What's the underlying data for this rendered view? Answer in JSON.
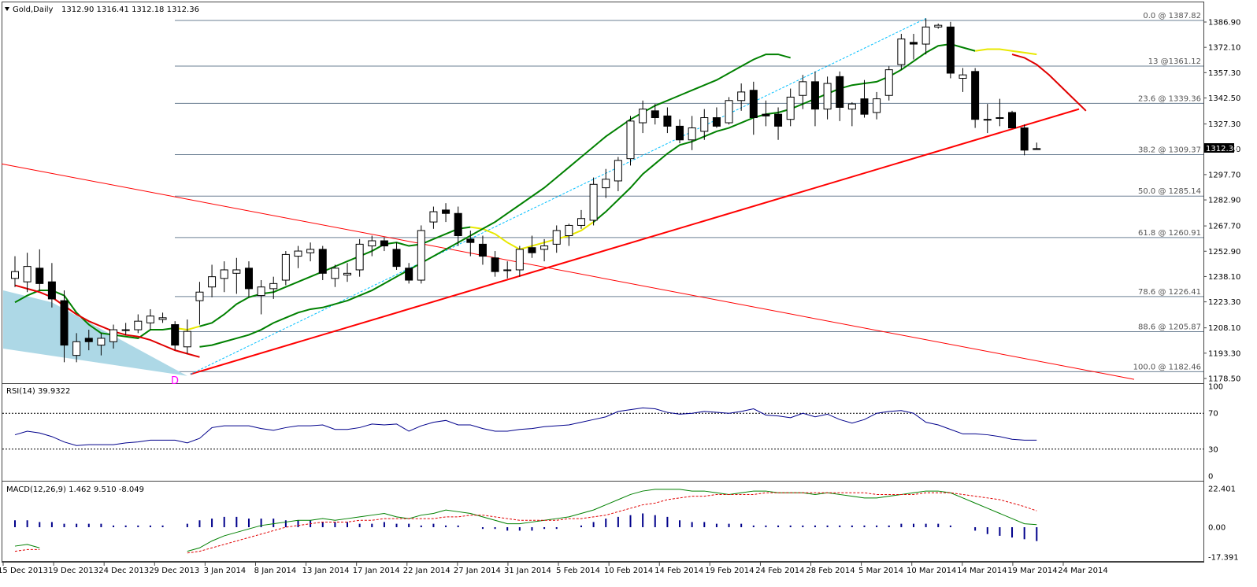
{
  "header": {
    "symbol_label": "Gold,Daily",
    "ohlc": "1312.90 1316.41 1312.18 1312.36"
  },
  "colors": {
    "fib_line": "#6b7f93",
    "trend_line": "#ff0000",
    "ma_fast": "#008000",
    "ma_slow_red": "#e00000",
    "ma_yellow": "#e8e800",
    "channel": "#00bfff",
    "rsi_line": "#00008b",
    "macd_hist": "#00008b",
    "macd_signal": "#e00000",
    "shade": "#add8e6",
    "marker": "#ff00ff"
  },
  "marker_text": "D",
  "chart_data": {
    "type": "candlestick",
    "price_axis": {
      "ticks": [
        "1386.90",
        "1372.10",
        "1357.30",
        "1342.50",
        "1327.30",
        "1312.50",
        "1297.70",
        "1282.90",
        "1267.70",
        "1252.90",
        "1238.10",
        "1223.30",
        "1208.10",
        "1193.30",
        "1178.50"
      ],
      "current_price": "1312.36"
    },
    "date_ticks": [
      "15 Dec 2013",
      "19 Dec 2013",
      "24 Dec 2013",
      "29 Dec 2013",
      "3 Jan 2014",
      "8 Jan 2014",
      "13 Jan 2014",
      "17 Jan 2014",
      "22 Jan 2014",
      "27 Jan 2014",
      "31 Jan 2014",
      "5 Feb 2014",
      "10 Feb 2014",
      "14 Feb 2014",
      "19 Feb 2014",
      "24 Feb 2014",
      "28 Feb 2014",
      "5 Mar 2014",
      "10 Mar 2014",
      "14 Mar 2014",
      "19 Mar 2014",
      "24 Mar 2014"
    ],
    "fibonacci": [
      {
        "label": "0.0 @ 1387.82",
        "price": 1387.82
      },
      {
        "label": "13 @1361.12",
        "price": 1361.12
      },
      {
        "label": "23.6 @ 1339.36",
        "price": 1339.36
      },
      {
        "label": "38.2 @ 1309.37",
        "price": 1309.37
      },
      {
        "label": "50.0 @ 1285.14",
        "price": 1285.14
      },
      {
        "label": "61.8 @ 1260.91",
        "price": 1260.91
      },
      {
        "label": "78.6 @ 1226.41",
        "price": 1226.41
      },
      {
        "label": "88.6 @ 1205.87",
        "price": 1205.87
      },
      {
        "label": "100.0 @ 1182.46",
        "price": 1182.46
      }
    ],
    "candles": [
      [
        1237,
        1250,
        1232,
        1241
      ],
      [
        1235,
        1252,
        1229,
        1244
      ],
      [
        1243,
        1254,
        1230,
        1234
      ],
      [
        1235,
        1246,
        1220,
        1225
      ],
      [
        1224,
        1230,
        1188,
        1198
      ],
      [
        1192,
        1205,
        1188,
        1200
      ],
      [
        1202,
        1207,
        1195,
        1200
      ],
      [
        1198,
        1205,
        1192,
        1202
      ],
      [
        1200,
        1210,
        1196,
        1207
      ],
      [
        1207,
        1211,
        1204,
        1207
      ],
      [
        1207,
        1216,
        1205,
        1212
      ],
      [
        1211,
        1219,
        1207,
        1215
      ],
      [
        1213,
        1217,
        1211,
        1214
      ],
      [
        1210,
        1212,
        1195,
        1198
      ],
      [
        1197,
        1213,
        1193,
        1206
      ],
      [
        1224,
        1235,
        1210,
        1229
      ],
      [
        1232,
        1245,
        1226,
        1238
      ],
      [
        1237,
        1247,
        1229,
        1242
      ],
      [
        1240,
        1249,
        1228,
        1242
      ],
      [
        1243,
        1247,
        1226,
        1231
      ],
      [
        1227,
        1236,
        1216,
        1232
      ],
      [
        1231,
        1238,
        1225,
        1234
      ],
      [
        1236,
        1253,
        1233,
        1251
      ],
      [
        1250,
        1256,
        1243,
        1253
      ],
      [
        1252,
        1258,
        1247,
        1254
      ],
      [
        1254,
        1256,
        1236,
        1240
      ],
      [
        1237,
        1245,
        1232,
        1243
      ],
      [
        1239,
        1246,
        1235,
        1240
      ],
      [
        1242,
        1260,
        1238,
        1257
      ],
      [
        1256,
        1262,
        1250,
        1259
      ],
      [
        1259,
        1261,
        1253,
        1256
      ],
      [
        1254,
        1258,
        1242,
        1244
      ],
      [
        1243,
        1246,
        1234,
        1236
      ],
      [
        1236,
        1268,
        1234,
        1265
      ],
      [
        1270,
        1279,
        1266,
        1276
      ],
      [
        1277,
        1281,
        1270,
        1275
      ],
      [
        1275,
        1279,
        1256,
        1262
      ],
      [
        1260,
        1265,
        1250,
        1258
      ],
      [
        1257,
        1262,
        1245,
        1250
      ],
      [
        1249,
        1253,
        1238,
        1241
      ],
      [
        1242,
        1247,
        1237,
        1242
      ],
      [
        1242,
        1256,
        1238,
        1254
      ],
      [
        1255,
        1262,
        1249,
        1252
      ],
      [
        1254,
        1260,
        1247,
        1256
      ],
      [
        1257,
        1268,
        1252,
        1265
      ],
      [
        1262,
        1269,
        1256,
        1268
      ],
      [
        1268,
        1277,
        1266,
        1272
      ],
      [
        1271,
        1296,
        1268,
        1292
      ],
      [
        1290,
        1301,
        1284,
        1295
      ],
      [
        1294,
        1308,
        1288,
        1306
      ],
      [
        1307,
        1332,
        1303,
        1329
      ],
      [
        1328,
        1341,
        1322,
        1336
      ],
      [
        1335,
        1339,
        1327,
        1331
      ],
      [
        1332,
        1337,
        1322,
        1326
      ],
      [
        1326,
        1330,
        1316,
        1318
      ],
      [
        1318,
        1332,
        1312,
        1325
      ],
      [
        1323,
        1336,
        1318,
        1331
      ],
      [
        1331,
        1337,
        1325,
        1326
      ],
      [
        1328,
        1343,
        1327,
        1341
      ],
      [
        1341,
        1351,
        1335,
        1346
      ],
      [
        1347,
        1352,
        1321,
        1331
      ],
      [
        1333,
        1341,
        1326,
        1332
      ],
      [
        1333,
        1337,
        1318,
        1326
      ],
      [
        1330,
        1348,
        1326,
        1343
      ],
      [
        1344,
        1356,
        1336,
        1352
      ],
      [
        1352,
        1358,
        1326,
        1336
      ],
      [
        1336,
        1355,
        1330,
        1351
      ],
      [
        1355,
        1358,
        1329,
        1337
      ],
      [
        1336,
        1340,
        1326,
        1339
      ],
      [
        1342,
        1353,
        1331,
        1333
      ],
      [
        1334,
        1346,
        1330,
        1342
      ],
      [
        1344,
        1361,
        1341,
        1359
      ],
      [
        1362,
        1380,
        1359,
        1377
      ],
      [
        1375,
        1380,
        1365,
        1374
      ],
      [
        1374,
        1389,
        1368,
        1384
      ],
      [
        1384,
        1386,
        1383,
        1385
      ],
      [
        1384,
        1387,
        1354,
        1357
      ],
      [
        1354,
        1360,
        1346,
        1356
      ],
      [
        1358,
        1360,
        1325,
        1330
      ],
      [
        1330,
        1339,
        1322,
        1330
      ],
      [
        1331,
        1342,
        1326,
        1331
      ],
      [
        1334,
        1335,
        1326,
        1325
      ],
      [
        1325,
        1327,
        1309,
        1312
      ],
      [
        1312.9,
        1316.41,
        1312.18,
        1312.36
      ]
    ],
    "moving_averages": {
      "ma_fast": [
        1223,
        1227,
        1230,
        1230,
        1227,
        1217,
        1210,
        1205,
        1204,
        1203,
        1202,
        1207,
        1207,
        1208,
        1207,
        1209,
        1211,
        1216,
        1222,
        1226,
        1228,
        1229,
        1232,
        1235,
        1238,
        1241,
        1244,
        1247,
        1250,
        1253,
        1257,
        1258,
        1256,
        1257,
        1260,
        1263,
        1266,
        1267,
        1266,
        1263,
        1258,
        1254,
        1256,
        1258,
        1260,
        1262,
        1265,
        1270,
        1276,
        1283,
        1290,
        1298,
        1304,
        1310,
        1315,
        1317,
        1320,
        1323,
        1325,
        1328,
        1331,
        1333,
        1334,
        1336,
        1339,
        1342,
        1345,
        1348,
        1350,
        1351,
        1352,
        1355,
        1359,
        1364,
        1369,
        1373,
        1374,
        1372,
        1370,
        1371,
        1371,
        1370,
        1369,
        1368
      ],
      "ma_red_start": [
        1233,
        1231,
        1229,
        1226,
        1221,
        1216,
        1212,
        1209,
        1206,
        1204,
        1203,
        1201,
        1198,
        1195,
        1193,
        1191
      ],
      "ma_green_mid": [
        1197,
        1198,
        1200,
        1202,
        1204,
        1207,
        1211,
        1214,
        1217,
        1219,
        1220,
        1222,
        1224,
        1227,
        1230,
        1234,
        1238,
        1242,
        1246,
        1250,
        1254,
        1258,
        1262,
        1266,
        1270,
        1275,
        1280,
        1285,
        1290,
        1296,
        1302,
        1308,
        1314,
        1320,
        1325,
        1330,
        1334,
        1338,
        1341,
        1344,
        1347,
        1350,
        1353,
        1357,
        1361,
        1365,
        1368,
        1368,
        1366
      ],
      "ma_red_end": [
        1368,
        1366,
        1362,
        1356,
        1349,
        1342,
        1335
      ]
    },
    "rsi": {
      "label": "RSI(14) 39.9322",
      "levels": [
        "70",
        "30"
      ],
      "axis": [
        "100",
        "70",
        "30",
        "0"
      ],
      "values": [
        46,
        50,
        48,
        44,
        38,
        34,
        35,
        35,
        35,
        37,
        38,
        40,
        40,
        40,
        37,
        42,
        54,
        56,
        56,
        56,
        53,
        51,
        54,
        56,
        56,
        57,
        52,
        52,
        54,
        58,
        57,
        58,
        50,
        56,
        60,
        62,
        57,
        57,
        53,
        50,
        50,
        52,
        53,
        55,
        56,
        57,
        60,
        63,
        66,
        72,
        74,
        76,
        75,
        71,
        69,
        70,
        72,
        71,
        70,
        72,
        75,
        68,
        67,
        65,
        70,
        66,
        69,
        63,
        59,
        63,
        70,
        72,
        73,
        70,
        60,
        57,
        52,
        47,
        47,
        46,
        44,
        41,
        40,
        40
      ],
      "current": 39.9322
    },
    "macd": {
      "label": "MACD(12,26,9) 1.462 9.510 -8.049",
      "axis": [
        "22.401",
        "0.00",
        "-17.391"
      ],
      "main": [
        -11,
        -10,
        -12,
        null,
        null,
        null,
        null,
        null,
        null,
        null,
        null,
        null,
        null,
        null,
        -14,
        -12,
        -8,
        -5,
        -3,
        -1,
        1,
        2,
        3,
        4,
        4,
        5,
        4,
        5,
        6,
        7,
        8,
        6,
        5,
        7,
        8,
        10,
        9,
        8,
        6,
        4,
        2,
        2,
        3,
        4,
        5,
        6,
        8,
        10,
        13,
        16,
        19,
        21,
        22,
        22,
        22,
        21,
        21,
        20,
        19,
        20,
        21,
        21,
        20,
        20,
        20,
        19,
        20,
        19,
        18,
        17,
        17,
        18,
        19,
        20,
        21,
        21,
        20,
        17,
        14,
        11,
        8,
        5,
        2,
        1.462
      ],
      "signal": [
        -14,
        -13,
        -13,
        null,
        null,
        null,
        null,
        null,
        null,
        null,
        null,
        null,
        null,
        null,
        -15,
        -14,
        -12,
        -10,
        -8,
        -6,
        -4,
        -2,
        0,
        1,
        2,
        3,
        3,
        3,
        4,
        4,
        5,
        5,
        5,
        5,
        5,
        6,
        6,
        7,
        7,
        6,
        5,
        4,
        4,
        4,
        4,
        5,
        5,
        6,
        7,
        9,
        11,
        13,
        14,
        16,
        17,
        18,
        18,
        19,
        19,
        19,
        19,
        20,
        20,
        20,
        20,
        20,
        20,
        20,
        20,
        20,
        19,
        19,
        19,
        19,
        20,
        20,
        20,
        19,
        18,
        17,
        16,
        14,
        12,
        9.51
      ],
      "hist": [
        4,
        4,
        3,
        3,
        2,
        2,
        2,
        2,
        1,
        1,
        1,
        1,
        1,
        0,
        2,
        4,
        5,
        6,
        6,
        5,
        5,
        5,
        4,
        4,
        4,
        3,
        3,
        3,
        2,
        2,
        3,
        2,
        2,
        1,
        2,
        1,
        1,
        0,
        -1,
        -1,
        -2,
        -2,
        -2,
        -1,
        -1,
        0,
        1,
        3,
        5,
        6,
        7,
        8,
        7,
        6,
        4,
        3,
        3,
        2,
        2,
        2,
        1,
        1,
        1,
        1,
        1,
        1,
        1,
        1,
        1,
        1,
        1,
        1,
        2,
        2,
        2,
        2,
        1,
        0,
        -2,
        -4,
        -5,
        -6,
        -7,
        -8.049
      ]
    }
  }
}
